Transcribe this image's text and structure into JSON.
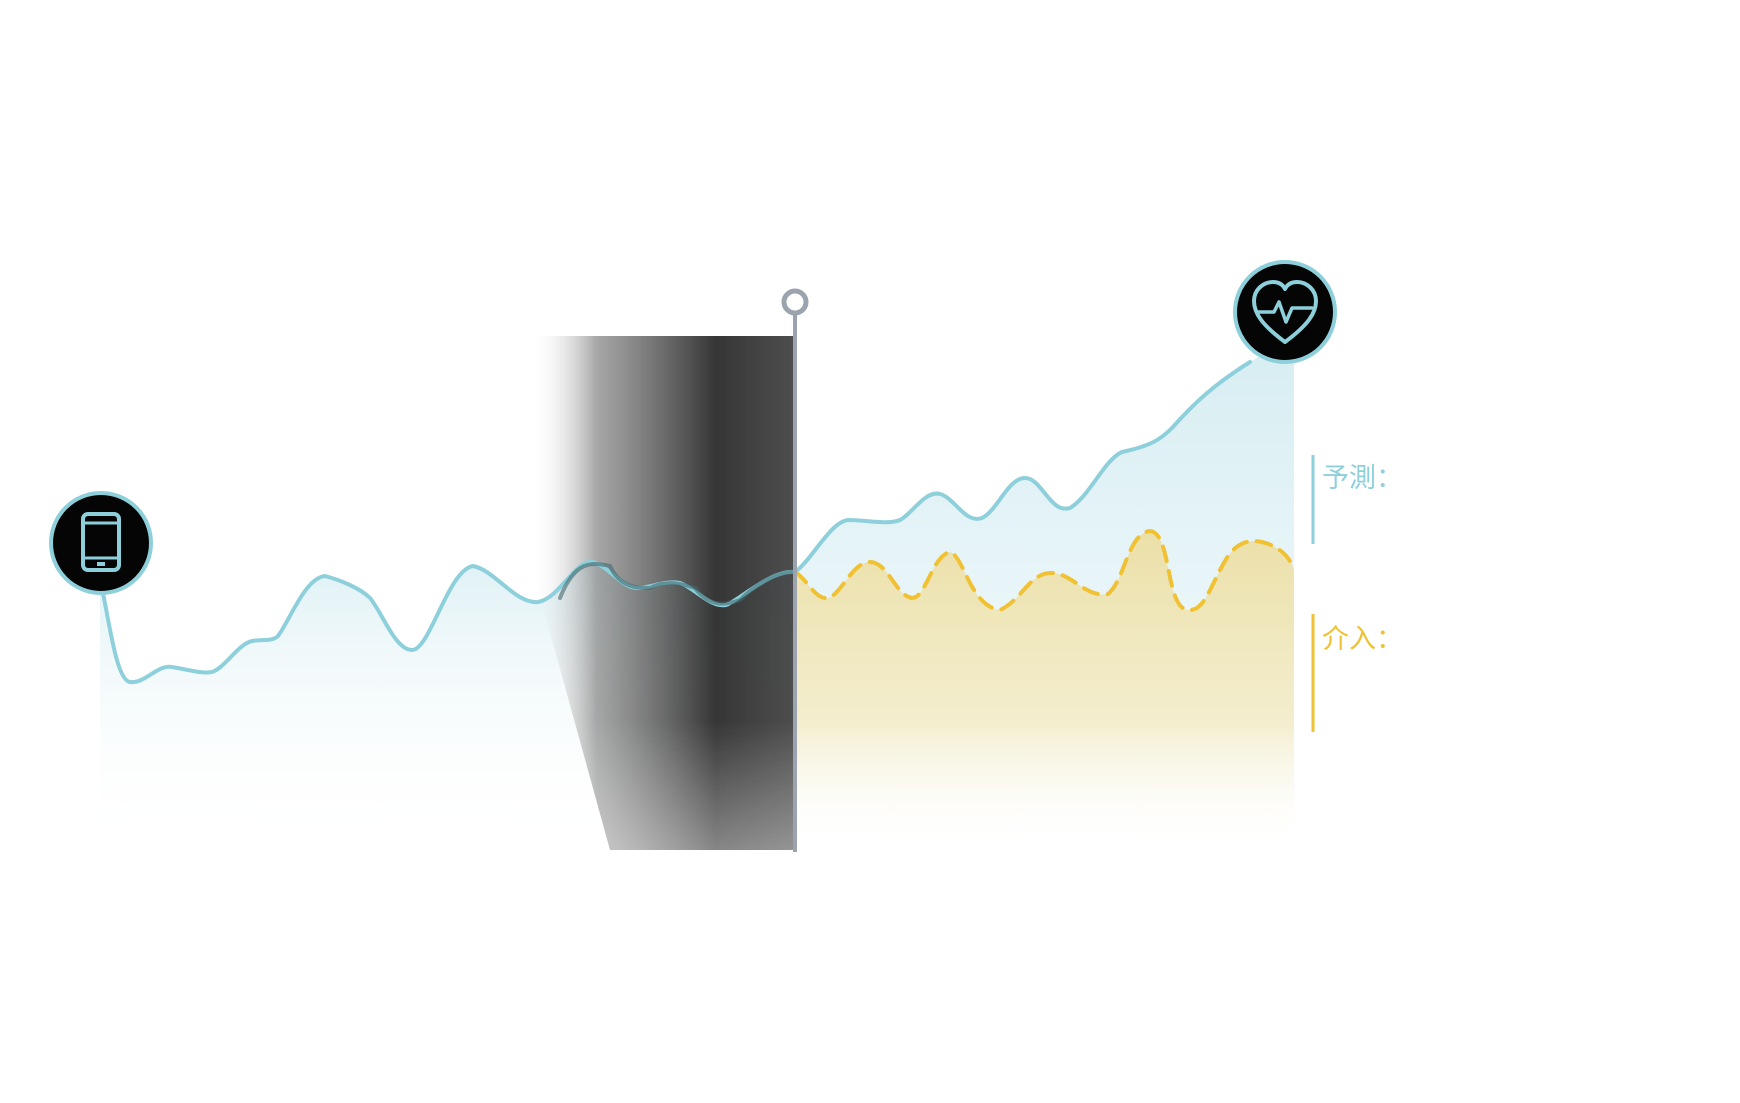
{
  "labels": {
    "prediction": "予測：",
    "intervention": "介入："
  },
  "icons": {
    "start": "smartphone-icon",
    "end": "heart-pulse-icon"
  },
  "colors": {
    "teal": "#8dd0db",
    "teal_fill": "#d8eef3",
    "yellow": "#f0c132",
    "yellow_fill": "#efe4b0",
    "dark": "#2e2e2e",
    "badge_bg": "#050505",
    "pin": "#9aa3ae"
  },
  "chart_data": {
    "type": "line",
    "series": [
      {
        "name": "予測：",
        "style": "solid"
      },
      {
        "name": "介入：",
        "style": "dashed"
      }
    ]
  }
}
